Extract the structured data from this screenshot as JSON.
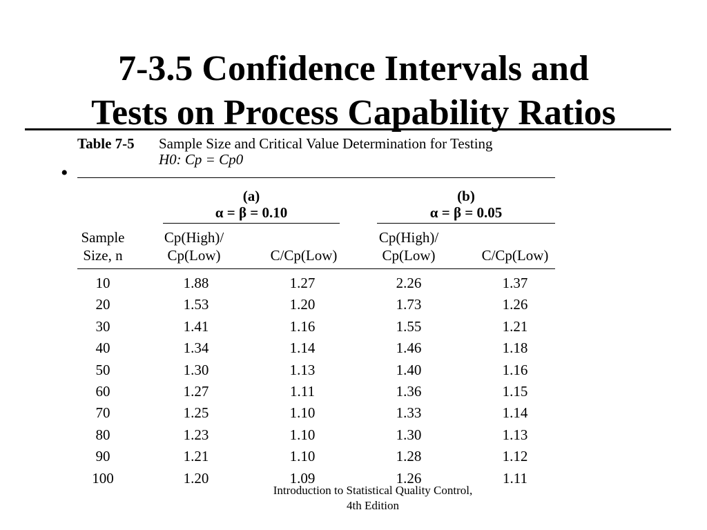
{
  "slide": {
    "title_line1": "7-3.5 Confidence Intervals and",
    "title_line2": "Tests on Process Capability Ratios",
    "bullet": "•"
  },
  "table": {
    "number": "Table 7-5",
    "caption_line1": "Sample Size and Critical Value Determination for Testing",
    "caption_line2": "H0: Cp = Cp0",
    "group_a_label": "(a)",
    "group_a_condition": "α = β = 0.10",
    "group_b_label": "(b)",
    "group_b_condition": "α = β = 0.05",
    "col_n_line1": "Sample",
    "col_n_line2": "Size, n",
    "col_ratio_line1": "Cp(High)/",
    "col_ratio_line2": "Cp(Low)",
    "col_c_ratio": "C/Cp(Low)",
    "rows": [
      [
        "10",
        "1.88",
        "1.27",
        "2.26",
        "1.37"
      ],
      [
        "20",
        "1.53",
        "1.20",
        "1.73",
        "1.26"
      ],
      [
        "30",
        "1.41",
        "1.16",
        "1.55",
        "1.21"
      ],
      [
        "40",
        "1.34",
        "1.14",
        "1.46",
        "1.18"
      ],
      [
        "50",
        "1.30",
        "1.13",
        "1.40",
        "1.16"
      ],
      [
        "60",
        "1.27",
        "1.11",
        "1.36",
        "1.15"
      ],
      [
        "70",
        "1.25",
        "1.10",
        "1.33",
        "1.14"
      ],
      [
        "80",
        "1.23",
        "1.10",
        "1.30",
        "1.13"
      ],
      [
        "90",
        "1.21",
        "1.10",
        "1.28",
        "1.12"
      ],
      [
        "100",
        "1.20",
        "1.09",
        "1.26",
        "1.11"
      ]
    ]
  },
  "footer": {
    "line1": "Introduction to Statistical Quality Control,",
    "line2": "4th Edition"
  }
}
